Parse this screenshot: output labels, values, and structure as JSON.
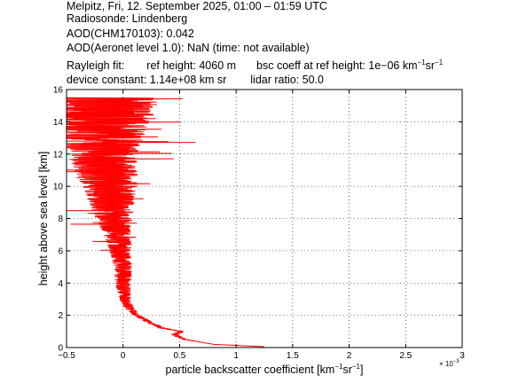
{
  "header": {
    "line1": "Melpitz, Fri, 12. September 2025, 01:00 – 01:59 UTC",
    "line2": "Radiosonde: Lindenberg",
    "line3": "AOD(CHM170103): 0.042",
    "line4": "AOD(Aeronet level 1.0): NaN   (time: not available)",
    "rayleigh_label": "Rayleigh fit:",
    "ref_height": "ref height: 4060 m",
    "bsc_coeff_prefix": "bsc coeff at ref height: 1e−06 km",
    "device_constant": "device constant: 1.14e+08 km sr",
    "lidar_ratio": "lidar ratio: 50.0",
    "unit_exp1": "−1",
    "unit_sr": "sr",
    "unit_exp2": "−1"
  },
  "chart_data": {
    "type": "line",
    "xlabel_prefix": "particle backscatter coefficient [km",
    "xlabel_exp1": "−1",
    "xlabel_sr": "sr",
    "xlabel_exp2": "−1",
    "xlabel_suffix": "]",
    "ylabel": "height above sea level [km]",
    "x_multiplier": "× 10",
    "x_multiplier_exp": "−3",
    "xlim": [
      -0.5,
      3
    ],
    "ylim": [
      0,
      16
    ],
    "x_ticks": [
      -0.5,
      0,
      0.5,
      1,
      1.5,
      2,
      2.5,
      3
    ],
    "x_tick_labels": [
      "−0.5",
      "0",
      "0.5",
      "1",
      "1.5",
      "2",
      "2.5",
      "3"
    ],
    "y_ticks": [
      0,
      2,
      4,
      6,
      8,
      10,
      12,
      14,
      16
    ],
    "y_tick_labels": [
      "0",
      "2",
      "4",
      "6",
      "8",
      "10",
      "12",
      "14",
      "16"
    ],
    "grid": true,
    "line_color": "#ff0000",
    "profile_anchors": [
      {
        "h": 0.05,
        "center": 1.25,
        "spread": 0.0
      },
      {
        "h": 0.2,
        "center": 0.8,
        "spread": 0.0
      },
      {
        "h": 0.5,
        "center": 0.55,
        "spread": 0.02
      },
      {
        "h": 0.8,
        "center": 0.45,
        "spread": 0.03
      },
      {
        "h": 1.0,
        "center": 0.52,
        "spread": 0.03
      },
      {
        "h": 1.2,
        "center": 0.35,
        "spread": 0.03
      },
      {
        "h": 1.5,
        "center": 0.25,
        "spread": 0.03
      },
      {
        "h": 2.0,
        "center": 0.12,
        "spread": 0.03
      },
      {
        "h": 2.5,
        "center": 0.05,
        "spread": 0.04
      },
      {
        "h": 3.0,
        "center": 0.02,
        "spread": 0.05
      },
      {
        "h": 4.0,
        "center": 0.0,
        "spread": 0.07
      },
      {
        "h": 5.0,
        "center": 0.0,
        "spread": 0.08
      },
      {
        "h": 6.0,
        "center": -0.02,
        "spread": 0.1
      },
      {
        "h": 7.0,
        "center": -0.05,
        "spread": 0.12
      },
      {
        "h": 8.0,
        "center": -0.08,
        "spread": 0.16
      },
      {
        "h": 9.0,
        "center": -0.1,
        "spread": 0.2
      },
      {
        "h": 10.0,
        "center": -0.12,
        "spread": 0.24
      },
      {
        "h": 11.0,
        "center": -0.15,
        "spread": 0.28
      },
      {
        "h": 12.0,
        "center": -0.18,
        "spread": 0.32
      },
      {
        "h": 13.0,
        "center": -0.2,
        "spread": 0.38
      },
      {
        "h": 14.0,
        "center": -0.2,
        "spread": 0.45
      },
      {
        "h": 15.0,
        "center": -0.2,
        "spread": 0.5
      },
      {
        "h": 15.5,
        "center": -0.2,
        "spread": 0.5
      }
    ]
  }
}
